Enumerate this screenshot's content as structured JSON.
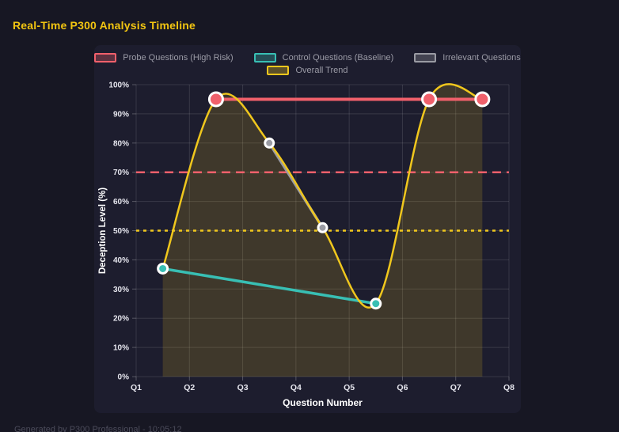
{
  "page": {
    "title": "Real-Time P300 Analysis Timeline",
    "footer": "Generated by P300 Professional - 10:05:12"
  },
  "colors": {
    "page_bg": "#171723",
    "panel_bg": "#1d1d2e",
    "title": "#f2c511",
    "probe": "#f0606b",
    "control": "#38bfb4",
    "irrelevant": "#9a9ba3",
    "trend": "#f0c71d",
    "area_fill": "rgba(240,199,29,0.16)",
    "grid": "rgba(255,255,255,0.12)",
    "tick": "rgba(255,255,255,0.25)",
    "tick_label": "#e6e6ee",
    "axis_title": "#ffffff",
    "legend_text": "#9b9ba6",
    "footer_text": "#4b4b5a",
    "marker_ring": "#ffffff"
  },
  "chart_data": {
    "type": "line",
    "title": "Real-Time P300 Analysis Timeline",
    "xlabel": "Question Number",
    "ylabel": "Deception Level (%)",
    "x_ticks": [
      "Q1",
      "Q2",
      "Q3",
      "Q4",
      "Q5",
      "Q6",
      "Q7",
      "Q8"
    ],
    "x_range": [
      1,
      8
    ],
    "ylim": [
      0,
      100
    ],
    "y_tick_step": 10,
    "y_tick_suffix": "%",
    "grid": true,
    "legend_position": "top",
    "legend": [
      {
        "label": "Probe Questions (High Risk)",
        "color_key": "probe"
      },
      {
        "label": "Control Questions (Baseline)",
        "color_key": "control"
      },
      {
        "label": "Irrelevant Questions",
        "color_key": "irrelevant"
      },
      {
        "label": "Overall Trend",
        "color_key": "trend"
      }
    ],
    "series": [
      {
        "name": "Probe Questions (High Risk)",
        "color_key": "probe",
        "smooth": false,
        "points": [
          {
            "x": 2.5,
            "y": 95
          },
          {
            "x": 6.5,
            "y": 95
          },
          {
            "x": 7.5,
            "y": 95
          }
        ],
        "line_width": 4,
        "marker_radius": 8.5
      },
      {
        "name": "Control Questions (Baseline)",
        "color_key": "control",
        "smooth": false,
        "points": [
          {
            "x": 1.5,
            "y": 37
          },
          {
            "x": 5.5,
            "y": 25
          }
        ],
        "line_width": 3.5,
        "marker_radius": 6
      },
      {
        "name": "Irrelevant Questions",
        "color_key": "irrelevant",
        "smooth": false,
        "points": [
          {
            "x": 3.5,
            "y": 80
          },
          {
            "x": 4.5,
            "y": 51
          }
        ],
        "line_width": 3.5,
        "marker_radius": 5.5
      },
      {
        "name": "Overall Trend",
        "color_key": "trend",
        "smooth": true,
        "fill_area": true,
        "points": [
          {
            "x": 1.5,
            "y": 37
          },
          {
            "x": 2.5,
            "y": 95
          },
          {
            "x": 3.5,
            "y": 80
          },
          {
            "x": 4.5,
            "y": 51
          },
          {
            "x": 5.5,
            "y": 25
          },
          {
            "x": 6.5,
            "y": 95
          },
          {
            "x": 7.5,
            "y": 95
          }
        ],
        "line_width": 2.5,
        "marker_radius": 0
      }
    ],
    "thresholds": [
      {
        "y": 70,
        "color_key": "probe",
        "dash": "11 7",
        "width": 2.5
      },
      {
        "y": 50,
        "color_key": "trend",
        "dash": "4 5",
        "width": 2.5
      }
    ]
  }
}
